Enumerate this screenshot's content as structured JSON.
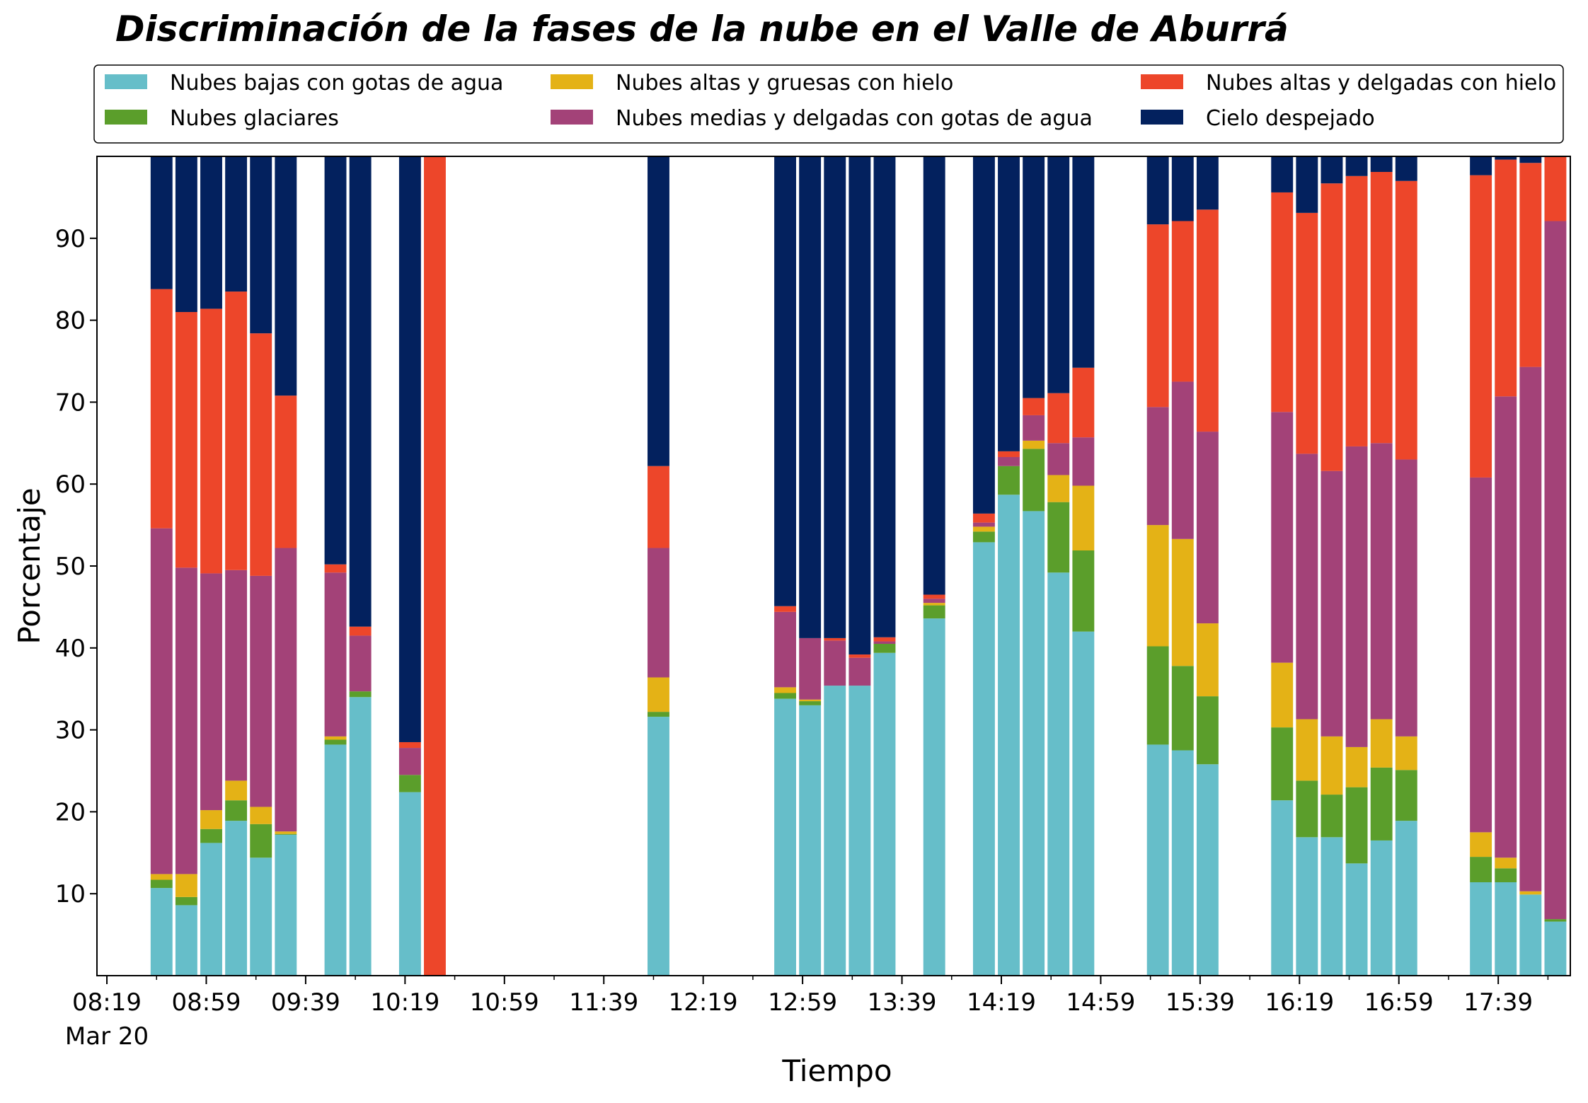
{
  "chart_data": {
    "type": "bar",
    "stacked": true,
    "title": "Discriminación de la fases de la nube en el Valle de Aburrá",
    "xlabel": "Tiempo",
    "ylabel": "Porcentaje",
    "ylim": [
      0,
      100
    ],
    "yticks": [
      10,
      20,
      30,
      40,
      50,
      60,
      70,
      80,
      90
    ],
    "xrange_minutes": [
      495,
      1088
    ],
    "xticks": [
      {
        "minute": 499,
        "label": "08:19",
        "sublabel": "Mar 20"
      },
      {
        "minute": 539,
        "label": "08:59",
        "sublabel": ""
      },
      {
        "minute": 579,
        "label": "09:39",
        "sublabel": ""
      },
      {
        "minute": 619,
        "label": "10:19",
        "sublabel": ""
      },
      {
        "minute": 659,
        "label": "10:59",
        "sublabel": ""
      },
      {
        "minute": 699,
        "label": "11:39",
        "sublabel": ""
      },
      {
        "minute": 739,
        "label": "12:19",
        "sublabel": ""
      },
      {
        "minute": 779,
        "label": "12:59",
        "sublabel": ""
      },
      {
        "minute": 819,
        "label": "13:39",
        "sublabel": ""
      },
      {
        "minute": 859,
        "label": "14:19",
        "sublabel": ""
      },
      {
        "minute": 899,
        "label": "14:59",
        "sublabel": ""
      },
      {
        "minute": 939,
        "label": "15:39",
        "sublabel": ""
      },
      {
        "minute": 979,
        "label": "16:19",
        "sublabel": ""
      },
      {
        "minute": 1019,
        "label": "16:59",
        "sublabel": ""
      },
      {
        "minute": 1059,
        "label": "17:39",
        "sublabel": ""
      }
    ],
    "legend_position": "top",
    "series": [
      {
        "name": "Nubes bajas con gotas de agua",
        "color": "#66bec9"
      },
      {
        "name": "Nubes glaciares",
        "color": "#5b9e2b"
      },
      {
        "name": "Nubes altas y gruesas con hielo",
        "color": "#e4b216"
      },
      {
        "name": "Nubes medias y delgadas con gotas de agua",
        "color": "#a34278"
      },
      {
        "name": "Nubes altas y delgadas con hielo",
        "color": "#ed462a"
      },
      {
        "name": "Cielo despejado",
        "color": "#03215e"
      }
    ],
    "bars": [
      {
        "minute": 521,
        "values": [
          10.7,
          1.0,
          0.7,
          42.2,
          29.2,
          16.2
        ]
      },
      {
        "minute": 531,
        "values": [
          8.6,
          1.0,
          2.8,
          37.4,
          31.2,
          19.0
        ]
      },
      {
        "minute": 541,
        "values": [
          16.2,
          1.7,
          2.3,
          28.9,
          32.3,
          18.6
        ]
      },
      {
        "minute": 551,
        "values": [
          18.9,
          2.5,
          2.4,
          25.7,
          34.0,
          16.5
        ]
      },
      {
        "minute": 561,
        "values": [
          14.4,
          4.1,
          2.1,
          28.2,
          29.6,
          21.6
        ]
      },
      {
        "minute": 571,
        "values": [
          17.2,
          0.1,
          0.3,
          34.6,
          18.6,
          29.2
        ]
      },
      {
        "minute": 591,
        "values": [
          28.2,
          0.6,
          0.4,
          20.0,
          1.0,
          49.8
        ]
      },
      {
        "minute": 601,
        "values": [
          34.0,
          0.7,
          0.0,
          6.8,
          1.1,
          57.4
        ]
      },
      {
        "minute": 621,
        "values": [
          22.4,
          2.1,
          0.0,
          3.3,
          0.7,
          71.5
        ]
      },
      {
        "minute": 631,
        "values": [
          0.0,
          0.0,
          0.0,
          0.0,
          100.0,
          0.0
        ]
      },
      {
        "minute": 721,
        "values": [
          31.6,
          0.6,
          4.2,
          15.8,
          10.0,
          37.8
        ]
      },
      {
        "minute": 772,
        "values": [
          33.8,
          0.7,
          0.7,
          9.2,
          0.7,
          54.9
        ]
      },
      {
        "minute": 782,
        "values": [
          33.0,
          0.5,
          0.2,
          7.5,
          0.0,
          58.8
        ]
      },
      {
        "minute": 792,
        "values": [
          35.4,
          0.0,
          0.0,
          5.5,
          0.3,
          58.8
        ]
      },
      {
        "minute": 802,
        "values": [
          35.4,
          0.0,
          0.0,
          3.4,
          0.4,
          60.8
        ]
      },
      {
        "minute": 812,
        "values": [
          39.4,
          1.1,
          0.0,
          0.3,
          0.5,
          58.7
        ]
      },
      {
        "minute": 832,
        "values": [
          43.6,
          1.6,
          0.3,
          0.5,
          0.5,
          53.5
        ]
      },
      {
        "minute": 852,
        "values": [
          52.9,
          1.3,
          0.6,
          0.5,
          1.1,
          43.6
        ]
      },
      {
        "minute": 862,
        "values": [
          58.7,
          3.5,
          0.0,
          1.1,
          0.7,
          36.0
        ]
      },
      {
        "minute": 872,
        "values": [
          56.7,
          7.6,
          1.0,
          3.1,
          2.1,
          29.5
        ]
      },
      {
        "minute": 882,
        "values": [
          49.2,
          8.6,
          3.3,
          3.9,
          6.1,
          28.9
        ]
      },
      {
        "minute": 892,
        "values": [
          42.0,
          9.9,
          7.9,
          5.9,
          8.5,
          25.8
        ]
      },
      {
        "minute": 922,
        "values": [
          28.2,
          12.0,
          14.8,
          14.4,
          22.3,
          8.3
        ]
      },
      {
        "minute": 932,
        "values": [
          27.5,
          10.3,
          15.5,
          19.2,
          19.6,
          7.9
        ]
      },
      {
        "minute": 942,
        "values": [
          25.8,
          8.3,
          8.9,
          23.4,
          27.1,
          6.5
        ]
      },
      {
        "minute": 972,
        "values": [
          21.4,
          8.9,
          7.9,
          30.6,
          26.8,
          4.4
        ]
      },
      {
        "minute": 982,
        "values": [
          16.9,
          6.9,
          7.5,
          32.4,
          29.4,
          6.9
        ]
      },
      {
        "minute": 992,
        "values": [
          16.9,
          5.2,
          7.1,
          32.4,
          35.1,
          3.3
        ]
      },
      {
        "minute": 1002,
        "values": [
          13.7,
          9.3,
          4.9,
          36.7,
          33.0,
          2.4
        ]
      },
      {
        "minute": 1012,
        "values": [
          16.5,
          8.9,
          5.9,
          33.7,
          33.1,
          1.9
        ]
      },
      {
        "minute": 1022,
        "values": [
          18.9,
          6.2,
          4.1,
          33.8,
          34.0,
          3.0
        ]
      },
      {
        "minute": 1052,
        "values": [
          11.4,
          3.1,
          3.0,
          43.3,
          36.9,
          2.3
        ]
      },
      {
        "minute": 1062,
        "values": [
          11.4,
          1.7,
          1.3,
          56.3,
          28.9,
          0.4
        ]
      },
      {
        "minute": 1072,
        "values": [
          9.9,
          0.0,
          0.4,
          64.0,
          24.9,
          0.8
        ]
      },
      {
        "minute": 1082,
        "values": [
          6.6,
          0.3,
          0.0,
          85.2,
          7.9,
          0.0
        ]
      }
    ]
  }
}
